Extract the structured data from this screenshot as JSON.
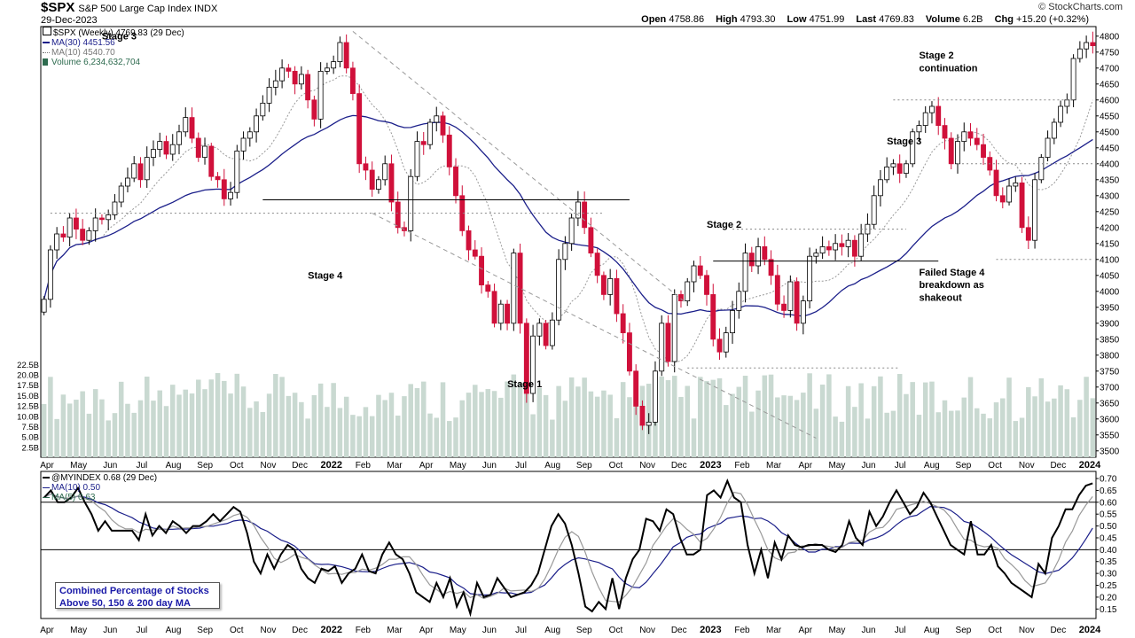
{
  "header": {
    "symbol": "$SPX",
    "description": "S&P 500 Large Cap Index",
    "exchange": "INDX",
    "date": "29-Dec-2023",
    "credit": "© StockCharts.com",
    "quote": {
      "open_label": "Open",
      "open": "4758.86",
      "high_label": "High",
      "high": "4793.30",
      "low_label": "Low",
      "low": "4751.99",
      "last_label": "Last",
      "last": "4769.83",
      "volume_label": "Volume",
      "volume": "6.2B",
      "chg_label": "Chg",
      "chg": "+15.20 (+0.32%)"
    }
  },
  "colors": {
    "up_candle": "#ffffff",
    "down_candle": "#d0103a",
    "ma_long": "#1b1f8a",
    "ma_short": "#999999",
    "volume": "#c9d9d1",
    "breadth_line": "#000000"
  },
  "chart_data": [
    {
      "type": "candlestick",
      "legend": [
        {
          "text": "$SPX (Weekly) 4769.83 (29 Dec)"
        },
        {
          "text": "MA(30) 4451.56"
        },
        {
          "text": "MA(10) 4540.70"
        },
        {
          "text": "Volume 6,234,632,704"
        }
      ],
      "x_labels": [
        "Apr",
        "May",
        "Jun",
        "Jul",
        "Aug",
        "Sep",
        "Oct",
        "Nov",
        "Dec",
        "2022",
        "Feb",
        "Mar",
        "Apr",
        "May",
        "Jun",
        "Jul",
        "Aug",
        "Sep",
        "Oct",
        "Nov",
        "Dec",
        "2023",
        "Feb",
        "Mar",
        "Apr",
        "May",
        "Jun",
        "Jul",
        "Aug",
        "Sep",
        "Oct",
        "Nov",
        "Dec",
        "2024"
      ],
      "y_ticks": [
        3500,
        3550,
        3600,
        3650,
        3700,
        3750,
        3800,
        3850,
        3900,
        3950,
        4000,
        4050,
        4100,
        4150,
        4200,
        4250,
        4300,
        4350,
        4400,
        4450,
        4500,
        4550,
        4600,
        4650,
        4700,
        4750,
        4800
      ],
      "volume_ticks": [
        "2.5B",
        "5.0B",
        "7.5B",
        "10.0B",
        "12.5B",
        "15.0B",
        "17.5B",
        "20.0B",
        "22.5B"
      ],
      "ylim": [
        3480,
        4830
      ],
      "close": [
        3975,
        4130,
        4180,
        4170,
        4230,
        4195,
        4160,
        4190,
        4230,
        4225,
        4240,
        4280,
        4330,
        4355,
        4400,
        4350,
        4420,
        4445,
        4470,
        4430,
        4460,
        4500,
        4545,
        4480,
        4420,
        4455,
        4360,
        4350,
        4290,
        4310,
        4440,
        4480,
        4500,
        4550,
        4590,
        4640,
        4660,
        4700,
        4690,
        4650,
        4680,
        4600,
        4540,
        4690,
        4700,
        4720,
        4780,
        4700,
        4620,
        4400,
        4380,
        4320,
        4350,
        4400,
        4280,
        4200,
        4190,
        4360,
        4470,
        4460,
        4530,
        4550,
        4490,
        4390,
        4300,
        4190,
        4130,
        4110,
        4020,
        4000,
        3900,
        3960,
        3900,
        4120,
        3900,
        3680,
        3860,
        3900,
        3830,
        3910,
        4100,
        4150,
        4230,
        4280,
        4200,
        4120,
        4050,
        3990,
        4040,
        3930,
        3870,
        3750,
        3640,
        3580,
        3590,
        3750,
        3900,
        3780,
        3990,
        3970,
        4030,
        4080,
        4050,
        3990,
        3850,
        3810,
        3870,
        3940,
        4000,
        4120,
        4080,
        4140,
        4100,
        4050,
        3960,
        3940,
        4030,
        3900,
        3970,
        4110,
        4120,
        4140,
        4130,
        4150,
        4140,
        4160,
        4110,
        4180,
        4210,
        4300,
        4350,
        4390,
        4400,
        4370,
        4400,
        4500,
        4520,
        4560,
        4580,
        4520,
        4480,
        4400,
        4470,
        4500,
        4480,
        4460,
        4420,
        4380,
        4300,
        4280,
        4330,
        4340,
        4200,
        4160,
        4350,
        4420,
        4480,
        4530,
        4580,
        4600,
        4730,
        4760,
        4780,
        4770
      ]
    },
    {
      "type": "line",
      "legend": [
        {
          "text": "@MYINDEX 0.68 (29 Dec)"
        },
        {
          "text": "MA(10) 0.50"
        },
        {
          "text": "MA(5) 0.63"
        }
      ],
      "y_ticks": [
        0.15,
        0.2,
        0.25,
        0.3,
        0.35,
        0.4,
        0.45,
        0.5,
        0.55,
        0.6,
        0.65,
        0.7
      ],
      "ylim": [
        0.11,
        0.73
      ],
      "reference_lines": [
        0.6,
        0.4
      ],
      "x_labels": [
        "Apr",
        "May",
        "Jun",
        "Jul",
        "Aug",
        "Sep",
        "Oct",
        "Nov",
        "Dec",
        "2022",
        "Feb",
        "Mar",
        "Apr",
        "May",
        "Jun",
        "Jul",
        "Aug",
        "Sep",
        "Oct",
        "Nov",
        "Dec",
        "2023",
        "Feb",
        "Mar",
        "Apr",
        "May",
        "Jun",
        "Jul",
        "Aug",
        "Sep",
        "Oct",
        "Nov",
        "Dec",
        "2024"
      ],
      "values": [
        0.62,
        0.65,
        0.6,
        0.6,
        0.62,
        0.66,
        0.6,
        0.55,
        0.48,
        0.52,
        0.48,
        0.48,
        0.48,
        0.48,
        0.44,
        0.55,
        0.46,
        0.5,
        0.47,
        0.52,
        0.5,
        0.47,
        0.5,
        0.5,
        0.52,
        0.55,
        0.52,
        0.55,
        0.58,
        0.56,
        0.47,
        0.35,
        0.3,
        0.38,
        0.32,
        0.38,
        0.42,
        0.4,
        0.32,
        0.28,
        0.26,
        0.32,
        0.31,
        0.33,
        0.26,
        0.3,
        0.32,
        0.38,
        0.31,
        0.3,
        0.38,
        0.43,
        0.38,
        0.36,
        0.3,
        0.22,
        0.2,
        0.18,
        0.26,
        0.2,
        0.28,
        0.16,
        0.22,
        0.13,
        0.26,
        0.2,
        0.21,
        0.28,
        0.24,
        0.2,
        0.21,
        0.22,
        0.25,
        0.3,
        0.4,
        0.5,
        0.55,
        0.51,
        0.42,
        0.3,
        0.16,
        0.14,
        0.18,
        0.15,
        0.28,
        0.15,
        0.28,
        0.36,
        0.4,
        0.53,
        0.52,
        0.48,
        0.57,
        0.55,
        0.45,
        0.38,
        0.38,
        0.4,
        0.63,
        0.65,
        0.62,
        0.69,
        0.62,
        0.6,
        0.42,
        0.3,
        0.4,
        0.28,
        0.43,
        0.36,
        0.46,
        0.42,
        0.41,
        0.42,
        0.42,
        0.42,
        0.4,
        0.39,
        0.42,
        0.52,
        0.45,
        0.42,
        0.56,
        0.5,
        0.54,
        0.6,
        0.65,
        0.6,
        0.55,
        0.58,
        0.64,
        0.6,
        0.54,
        0.48,
        0.42,
        0.4,
        0.38,
        0.52,
        0.38,
        0.38,
        0.42,
        0.33,
        0.3,
        0.26,
        0.24,
        0.22,
        0.2,
        0.34,
        0.3,
        0.45,
        0.5,
        0.57,
        0.57,
        0.63,
        0.67,
        0.68
      ]
    }
  ],
  "annotations": [
    {
      "text": "Stage 3",
      "at": [
        9,
        4790
      ]
    },
    {
      "text": "Stage 4",
      "at": [
        41,
        4040
      ]
    },
    {
      "text": "Stage 1",
      "at": [
        72,
        3700
      ]
    },
    {
      "text": "Stage 2",
      "at": [
        103,
        4200
      ]
    },
    {
      "text": "Stage 3",
      "at": [
        131,
        4460
      ]
    },
    {
      "text": "Stage 2",
      "at": [
        136,
        4730
      ]
    },
    {
      "text": "continuation",
      "at": [
        136,
        4690
      ]
    },
    {
      "text": "Failed Stage 4",
      "at": [
        136,
        4050
      ]
    },
    {
      "text": "breakdown as",
      "at": [
        136,
        4010
      ]
    },
    {
      "text": "shakeout",
      "at": [
        136,
        3970
      ]
    }
  ],
  "infobox": {
    "line1": "Combined Percentage of Stocks",
    "line2": "Above 50, 150 & 200 day MA"
  }
}
